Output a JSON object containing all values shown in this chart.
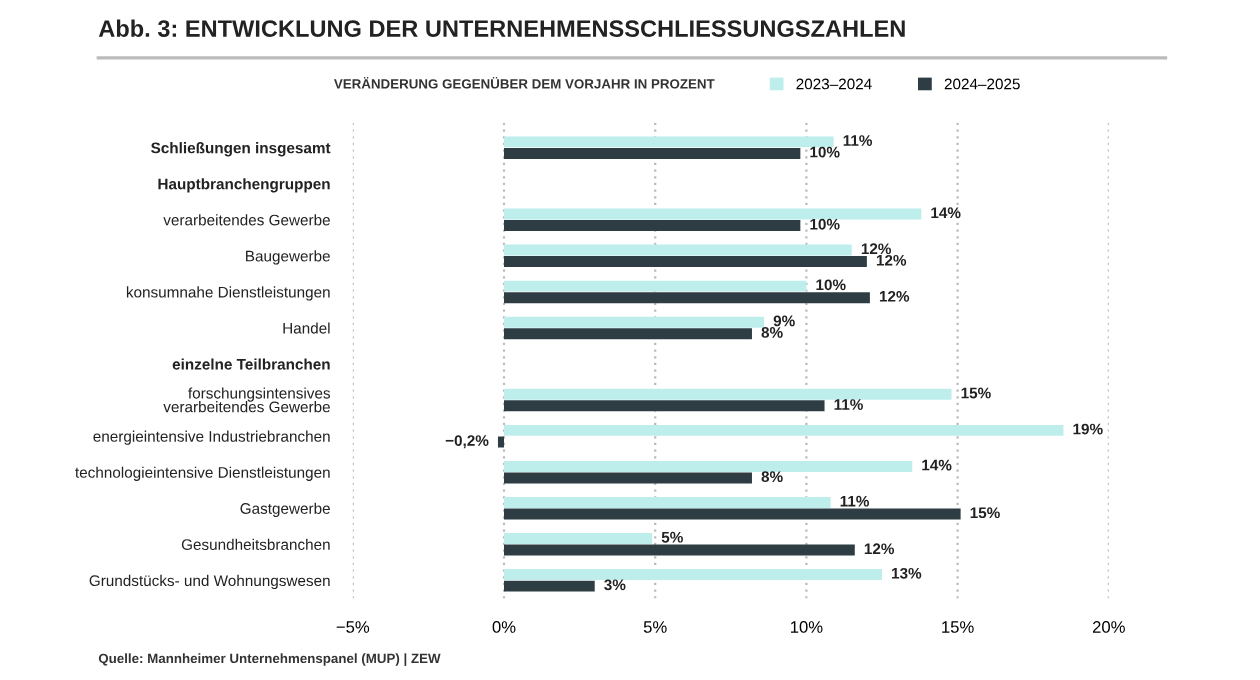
{
  "chart_data": {
    "type": "bar",
    "orientation": "horizontal",
    "title": "Abb. 3: ENTWICKLUNG DER UNTERNEHMENSSCHLIESSUNGSZAHLEN",
    "subtitle": "VERÄNDERUNG GEGENÜBER DEM VORJAHR IN PROZENT",
    "categories": [
      "Schließungen insgesamt",
      "Hauptbranchengruppen",
      "verarbeitendes Gewerbe",
      "Baugewerbe",
      "konsumnahe Dienstleistungen",
      "Handel",
      "einzelne Teilbranchen",
      "forschungsintensives\nverarbeitendes Gewerbe",
      "energieintensive Industriebranchen",
      "technologieintensive Dienstleistungen",
      "Gastgewerbe",
      "Gesundheitsbranchen",
      "Grundstücks- und Wohnungswesen"
    ],
    "series": [
      {
        "name": "2023–2024",
        "color": "#bdeeec",
        "values": [
          10.9,
          null,
          13.8,
          11.5,
          10.0,
          8.6,
          null,
          14.8,
          18.5,
          13.5,
          10.8,
          4.9,
          12.5
        ],
        "value_labels": [
          "11%",
          null,
          "14%",
          "12%",
          "10%",
          "9%",
          null,
          "15%",
          "19%",
          "14%",
          "11%",
          "5%",
          "13%"
        ]
      },
      {
        "name": "2024–2025",
        "color": "#2e3d43",
        "values": [
          9.8,
          null,
          9.8,
          12.0,
          12.1,
          8.2,
          null,
          10.6,
          -0.2,
          8.2,
          15.1,
          11.6,
          3.0
        ],
        "value_labels": [
          "10%",
          null,
          "10%",
          "12%",
          "12%",
          "8%",
          null,
          "11%",
          "−0,2%",
          "8%",
          "15%",
          "12%",
          "3%"
        ]
      }
    ],
    "xlim": [
      -5,
      20
    ],
    "xticks": [
      {
        "value": -5,
        "label": "−5%"
      },
      {
        "value": 0,
        "label": "0%"
      },
      {
        "value": 5,
        "label": "5%"
      },
      {
        "value": 10,
        "label": "10%"
      },
      {
        "value": 15,
        "label": "15%"
      },
      {
        "value": 20,
        "label": "20%"
      }
    ],
    "grid": "x",
    "legend": "top",
    "annotations": [
      "Quelle: Mannheimer Unternehmenspanel (MUP) | ZEW"
    ]
  }
}
